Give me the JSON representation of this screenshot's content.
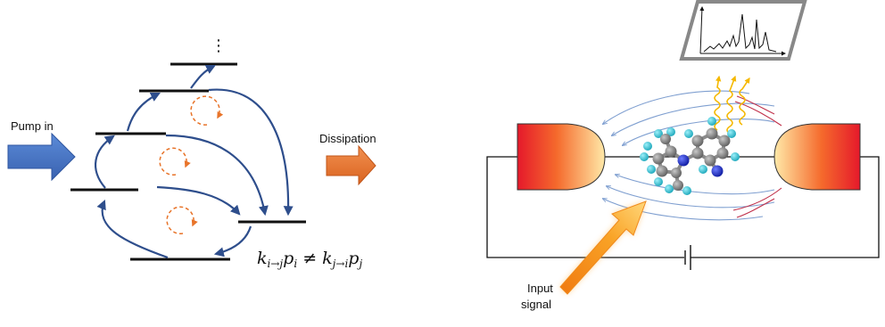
{
  "left_panel": {
    "pump_label": "Pump in",
    "dissipation_label": "Dissipation",
    "ellipsis": "⋮",
    "equation": {
      "k1": "k",
      "sub1": "i→j",
      "p1": "p",
      "psub1": "i",
      "neq": " ≠ ",
      "k2": "k",
      "sub2": "j→i",
      "p2": "p",
      "psub2": "j"
    },
    "colors": {
      "level": "#111111",
      "transition": "#2e4e8c",
      "cycle": "#e8742a",
      "pump_arrow": "#4472c4",
      "dissipation_arrow": "#ed7d31"
    }
  },
  "right_panel": {
    "input_label_line1": "Input",
    "input_label_line2": "signal",
    "icons": [
      "spectrum-icon",
      "molecule-icon",
      "photon-emission-icon",
      "battery-icon"
    ],
    "colors": {
      "field_blue": "#7f9fd0",
      "field_red": "#c0304a",
      "electrode_hot": "#e5192b",
      "electrode_cool": "#ffe9a8",
      "photon": "#f5b800",
      "carbon": "#808080",
      "hydrogen": "#2ec6d8",
      "nitrogen": "#1a2fd0"
    }
  }
}
